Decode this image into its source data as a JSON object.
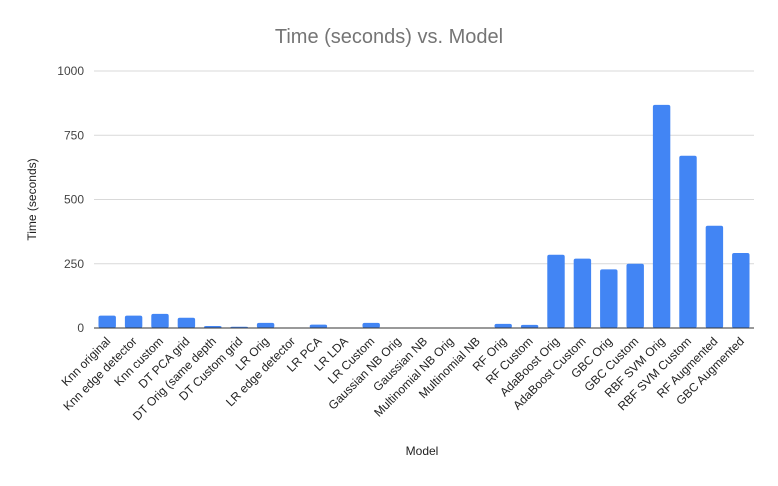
{
  "chart_data": {
    "type": "bar",
    "title": "Time (seconds) vs. Model",
    "xlabel": "Model",
    "ylabel": "Time (seconds)",
    "ylim": [
      0,
      1000
    ],
    "yticks": [
      "0",
      "250",
      "500",
      "750",
      "1000"
    ],
    "grid": true,
    "legend": "none",
    "bar_color": "#4285f4",
    "categories": [
      "Knn original",
      "Knn edge detector",
      "Knn custom",
      "DT PCA grid",
      "DT Orig (same depth",
      "DT Custom grid",
      "LR Orig",
      "LR edge detector",
      "LR PCA",
      "LR LDA",
      "LR Custom",
      "Gaussian NB Orig",
      "Gaussian NB",
      "Multinomial NB Orig",
      "Multinomial NB",
      "RF Orig",
      "RF Custom",
      "AdaBoost Orig",
      "AdaBoost Custom",
      "GBC Orig",
      "GBC Custom",
      "RBF SVM Orig",
      "RBF SVM Custom",
      "RF Augmented",
      "GBC Augmented"
    ],
    "values": [
      48,
      48,
      55,
      40,
      8,
      5,
      20,
      2,
      13,
      2,
      20,
      2,
      2,
      1,
      1,
      16,
      12,
      285,
      270,
      228,
      250,
      868,
      670,
      398,
      292
    ]
  }
}
